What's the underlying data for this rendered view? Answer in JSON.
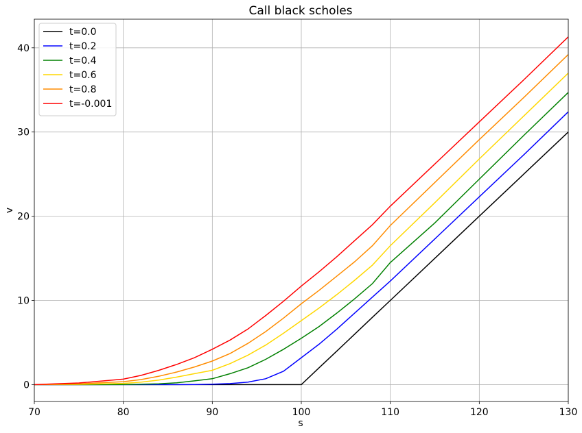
{
  "chart_data": {
    "type": "line",
    "title": "Call black scholes",
    "xlabel": "s",
    "ylabel": "v",
    "xlim": [
      70,
      130
    ],
    "ylim": [
      -2.0,
      43.4
    ],
    "xticks": [
      70,
      80,
      90,
      100,
      110,
      120,
      130
    ],
    "yticks": [
      0,
      10,
      20,
      30,
      40
    ],
    "grid": true,
    "legend_position": "top-left",
    "x": [
      70,
      75,
      80,
      82,
      84,
      86,
      88,
      90,
      92,
      94,
      96,
      98,
      100,
      102,
      104,
      106,
      108,
      110,
      115,
      120,
      125,
      130
    ],
    "series": [
      {
        "name": "t=0.0",
        "color": "#000000",
        "values": [
          0,
          0,
          0,
          0,
          0,
          0,
          0,
          0,
          0,
          0,
          0,
          0,
          0,
          2,
          4,
          6,
          8,
          10,
          15,
          20,
          25,
          30
        ]
      },
      {
        "name": "t=0.2",
        "color": "#0000ff",
        "values": [
          0,
          0,
          0,
          0,
          0,
          0,
          0.02,
          0.05,
          0.12,
          0.3,
          0.7,
          1.6,
          3.2,
          4.8,
          6.6,
          8.5,
          10.4,
          12.3,
          17.3,
          22.3,
          27.3,
          32.4
        ]
      },
      {
        "name": "t=0.4",
        "color": "#008000",
        "values": [
          0,
          0,
          0.02,
          0.05,
          0.1,
          0.22,
          0.45,
          0.7,
          1.3,
          2.0,
          3.0,
          4.2,
          5.5,
          6.9,
          8.5,
          10.2,
          12.0,
          14.5,
          19.2,
          24.4,
          29.6,
          34.7
        ]
      },
      {
        "name": "t=0.6",
        "color": "#ffd700",
        "values": [
          0,
          0.03,
          0.15,
          0.3,
          0.55,
          0.9,
          1.3,
          1.7,
          2.5,
          3.5,
          4.7,
          6.1,
          7.6,
          9.1,
          10.7,
          12.4,
          14.2,
          16.5,
          21.6,
          26.8,
          31.9,
          37.0
        ]
      },
      {
        "name": "t=0.8",
        "color": "#ff8c00",
        "values": [
          0,
          0.1,
          0.35,
          0.6,
          1.0,
          1.5,
          2.1,
          2.8,
          3.7,
          4.9,
          6.3,
          7.9,
          9.6,
          11.2,
          12.9,
          14.6,
          16.5,
          18.9,
          24.0,
          29.1,
          34.1,
          39.2
        ]
      },
      {
        "name": "t=-0.001",
        "color": "#ff0000",
        "values": [
          0,
          0.2,
          0.65,
          1.1,
          1.7,
          2.4,
          3.2,
          4.2,
          5.3,
          6.6,
          8.2,
          9.9,
          11.7,
          13.4,
          15.2,
          17.1,
          19.0,
          21.2,
          26.2,
          31.2,
          36.2,
          41.3
        ]
      }
    ]
  }
}
